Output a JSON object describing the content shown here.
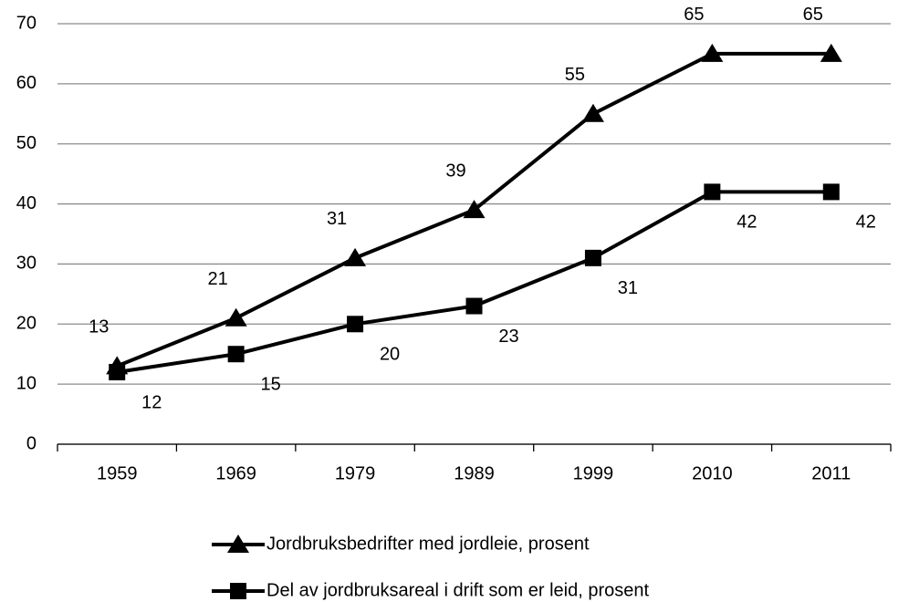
{
  "chart_data": {
    "type": "line",
    "categories": [
      "1959",
      "1969",
      "1979",
      "1989",
      "1999",
      "2010",
      "2011"
    ],
    "series": [
      {
        "name": "Jordbruksbedrifter med jordleie, prosent",
        "color": "#000000",
        "marker": "triangle",
        "values": [
          13,
          21,
          31,
          39,
          55,
          65,
          65
        ]
      },
      {
        "name": "Del av jordbruksareal i drift som er leid, prosent",
        "color": "#000000",
        "marker": "square",
        "values": [
          12,
          15,
          20,
          23,
          31,
          42,
          42
        ]
      }
    ],
    "ylim": [
      0,
      70
    ],
    "yticks": [
      0,
      10,
      20,
      30,
      40,
      50,
      60,
      70
    ],
    "grid": true,
    "legend": "bottom"
  }
}
